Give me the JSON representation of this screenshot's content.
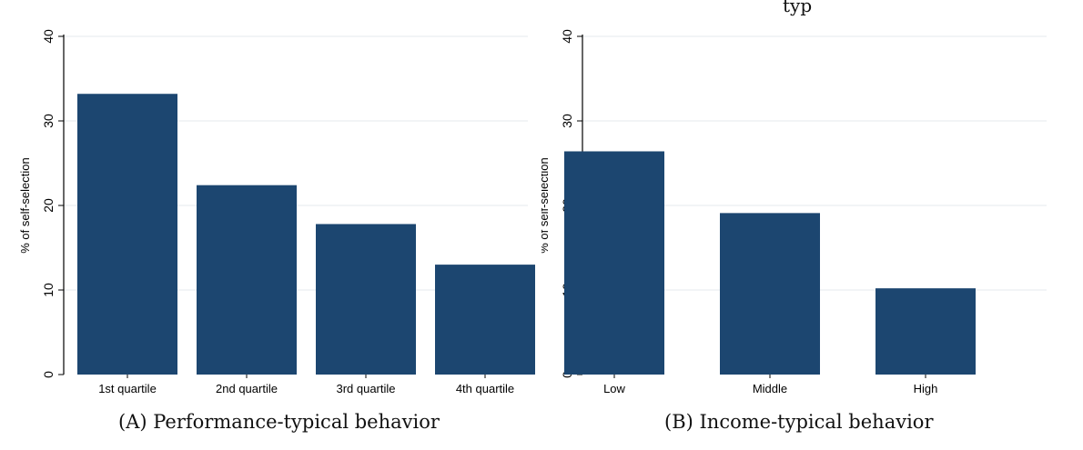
{
  "chart_data": [
    {
      "type": "bar",
      "panel_label": "(A)",
      "caption": "Performance-typical behavior",
      "categories": [
        "1st quartile",
        "2nd quartile",
        "3rd quartile",
        "4th quartile"
      ],
      "values": [
        33.2,
        22.4,
        17.8,
        13.0
      ],
      "ylabel": "% of self-selection",
      "xlabel": "",
      "ylim": [
        0,
        40
      ],
      "yticks": [
        0,
        10,
        20,
        30,
        40
      ],
      "grid": true,
      "bar_color": "#1c4670"
    },
    {
      "type": "bar",
      "panel_label": "(B)",
      "caption": "Income-typical behavior",
      "categories": [
        "Low",
        "Middle",
        "High"
      ],
      "values": [
        26.4,
        19.1,
        10.2
      ],
      "ylabel": "% of self-selection",
      "xlabel": "",
      "ylim": [
        0,
        40
      ],
      "yticks": [
        0,
        10,
        20,
        30,
        40
      ],
      "grid": true,
      "bar_color": "#1c4670"
    }
  ],
  "partial_title": "typ"
}
